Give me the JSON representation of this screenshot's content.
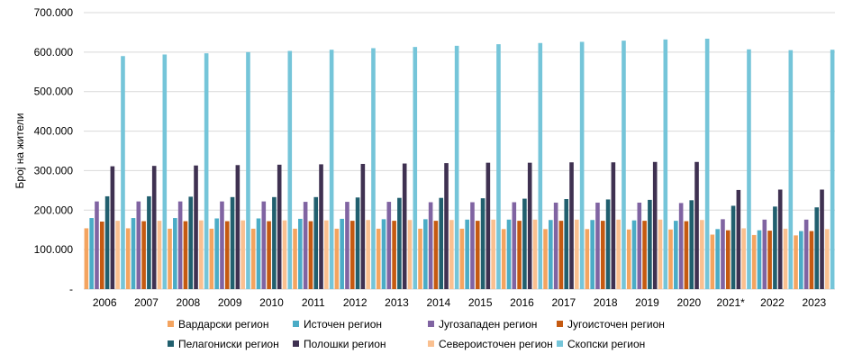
{
  "chart_data": {
    "type": "bar",
    "title": "",
    "xlabel": "",
    "ylabel": "Број на жители",
    "ylim": [
      0,
      700000
    ],
    "yticks": [
      0,
      100000,
      200000,
      300000,
      400000,
      500000,
      600000,
      700000
    ],
    "ytick_labels": [
      "-",
      "100.000",
      "200.000",
      "300.000",
      "400.000",
      "500.000",
      "600.000",
      "700.000"
    ],
    "grid": true,
    "legend_position": "bottom",
    "categories": [
      "2006",
      "2007",
      "2008",
      "2009",
      "2010",
      "2011",
      "2012",
      "2013",
      "2014",
      "2015",
      "2016",
      "2017",
      "2018",
      "2019",
      "2020",
      "2021*",
      "2022",
      "2023"
    ],
    "series": [
      {
        "name": "Вардарски регион",
        "color": "#f4a460",
        "values": [
          154000,
          154000,
          153000,
          153000,
          153000,
          153000,
          153000,
          153000,
          153000,
          153000,
          152000,
          152000,
          152000,
          151000,
          151000,
          138000,
          137000,
          136000
        ]
      },
      {
        "name": "Источен регион",
        "color": "#4bacc6",
        "values": [
          180000,
          180000,
          180000,
          179000,
          179000,
          178000,
          178000,
          177000,
          177000,
          176000,
          176000,
          175000,
          175000,
          174000,
          173000,
          152000,
          149000,
          147000
        ]
      },
      {
        "name": "Југозападен регион",
        "color": "#8064a2",
        "values": [
          222000,
          222000,
          222000,
          222000,
          222000,
          221000,
          221000,
          221000,
          220000,
          220000,
          220000,
          219000,
          219000,
          219000,
          218000,
          177000,
          176000,
          176000
        ]
      },
      {
        "name": "Југоисточен регион",
        "color": "#c55a11",
        "values": [
          171000,
          172000,
          172000,
          172000,
          172000,
          172000,
          173000,
          173000,
          173000,
          173000,
          173000,
          173000,
          173000,
          173000,
          172000,
          149000,
          148000,
          147000
        ]
      },
      {
        "name": "Пелагониски регион",
        "color": "#215f6e",
        "values": [
          235000,
          235000,
          234000,
          233000,
          233000,
          233000,
          232000,
          231000,
          231000,
          230000,
          229000,
          228000,
          227000,
          226000,
          225000,
          211000,
          209000,
          207000
        ]
      },
      {
        "name": "Полошки регион",
        "color": "#3f3151",
        "values": [
          311000,
          312000,
          313000,
          314000,
          315000,
          316000,
          317000,
          318000,
          319000,
          320000,
          320000,
          321000,
          321000,
          322000,
          322000,
          251000,
          252000,
          252000
        ]
      },
      {
        "name": "Североисточен регион",
        "color": "#fac090",
        "values": [
          173000,
          173000,
          174000,
          174000,
          174000,
          174000,
          175000,
          175000,
          175000,
          176000,
          176000,
          176000,
          176000,
          176000,
          175000,
          154000,
          153000,
          152000
        ]
      },
      {
        "name": "Скопски регион",
        "color": "#75c5d9",
        "values": [
          590000,
          594000,
          597000,
          600000,
          603000,
          606000,
          610000,
          613000,
          616000,
          620000,
          623000,
          626000,
          629000,
          632000,
          634000,
          607000,
          605000,
          606000
        ]
      }
    ]
  }
}
